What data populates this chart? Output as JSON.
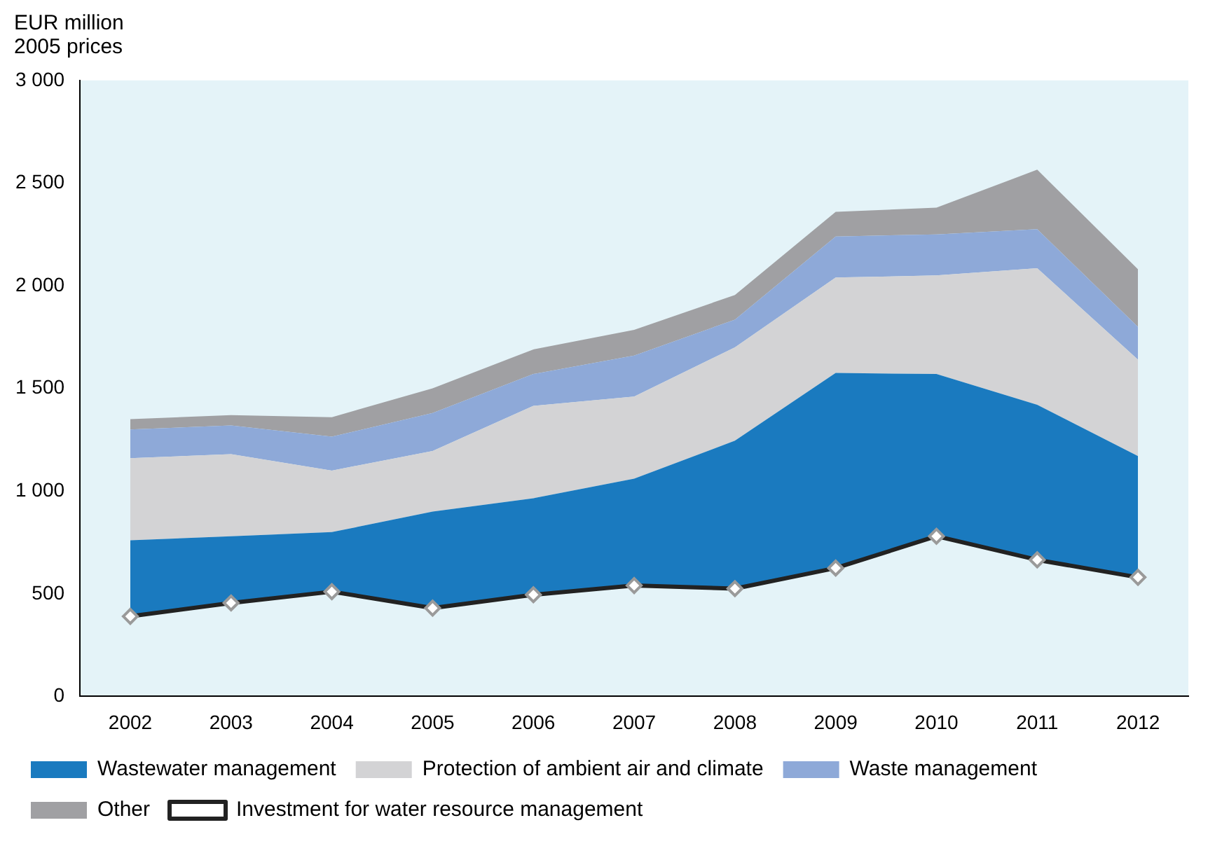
{
  "chart_data": {
    "type": "area",
    "ylabel": "EUR million\n2005 prices",
    "categories": [
      "2002",
      "2003",
      "2004",
      "2005",
      "2006",
      "2007",
      "2008",
      "2009",
      "2010",
      "2011",
      "2012"
    ],
    "stacked": true,
    "ylim": [
      0,
      3000
    ],
    "yticks": [
      0,
      {
        "value": 500,
        "label": "500"
      },
      {
        "value": 1000,
        "label": "1 000"
      },
      {
        "value": 1500,
        "label": "1 500"
      },
      {
        "value": 2000,
        "label": "2 000"
      },
      {
        "value": 2500,
        "label": "2 500"
      },
      {
        "value": 3000,
        "label": "3 000"
      }
    ],
    "grid": false,
    "legend": "bottom",
    "series": [
      {
        "name": "Wastewater management",
        "color": "#1a7abf",
        "values": [
          760,
          780,
          800,
          900,
          965,
          1060,
          1245,
          1575,
          1570,
          1420,
          1170
        ]
      },
      {
        "name": "Protection of ambient air and climate",
        "color": "#d3d3d5",
        "values": [
          400,
          400,
          300,
          295,
          450,
          400,
          455,
          465,
          480,
          665,
          470
        ]
      },
      {
        "name": "Waste management",
        "color": "#8ea9d8",
        "values": [
          140,
          140,
          165,
          185,
          155,
          200,
          135,
          200,
          200,
          190,
          160
        ]
      },
      {
        "name": "Other",
        "color": "#a0a0a3",
        "values": [
          50,
          50,
          95,
          120,
          120,
          125,
          120,
          120,
          130,
          290,
          280
        ]
      },
      {
        "name": "Investment for water resource management",
        "type": "line",
        "color": "#222222",
        "marker": "diamond",
        "line_style": "solid",
        "values": [
          390,
          455,
          510,
          430,
          495,
          540,
          525,
          625,
          780,
          665,
          580
        ]
      }
    ]
  }
}
